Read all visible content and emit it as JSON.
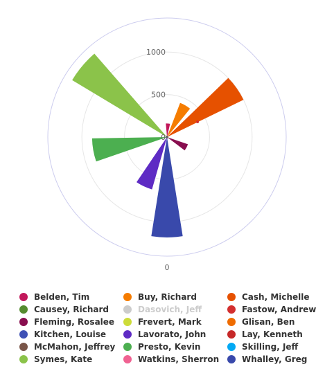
{
  "chart_data": {
    "type": "polar-bar",
    "radial_ticks": [
      "0",
      "500",
      "1000"
    ],
    "angular_tick": "0",
    "rmax": 1400,
    "series": [
      {
        "name": "Belden, Tim",
        "color": "#c2185b",
        "angle": 4,
        "value": 160,
        "visible": true
      },
      {
        "name": "Buy, Richard",
        "color": "#f57c00",
        "angle": 30,
        "value": 430,
        "visible": true
      },
      {
        "name": "Cash, Michelle",
        "color": "#e65100",
        "angle": 55,
        "value": 1000,
        "visible": true
      },
      {
        "name": "Causey, Richard",
        "color": "#558b2f",
        "angle": 80,
        "value": 0,
        "visible": true
      },
      {
        "name": "Dasovich, Jeff",
        "color": "#cccccc",
        "angle": 100,
        "value": 0,
        "visible": false
      },
      {
        "name": "Fastow, Andrew",
        "color": "#d32f2f",
        "angle": 110,
        "value": 0,
        "visible": true
      },
      {
        "name": "Fleming, Rosalee",
        "color": "#880e4f",
        "angle": 118,
        "value": 260,
        "visible": true
      },
      {
        "name": "Frevert, Mark",
        "color": "#cddc39",
        "angle": 140,
        "value": 0,
        "visible": true
      },
      {
        "name": "Glisan, Ben",
        "color": "#ef6c00",
        "angle": 150,
        "value": 0,
        "visible": true
      },
      {
        "name": "Kitchen, Louise",
        "color": "#3f51b5",
        "angle": 165,
        "value": 0,
        "visible": true
      },
      {
        "name": "Lavorato, John",
        "color": "#5e2bc4",
        "angle": 205,
        "value": 640,
        "visible": true
      },
      {
        "name": "Lay, Kenneth",
        "color": "#c62828",
        "angle": 215,
        "value": 0,
        "visible": true
      },
      {
        "name": "McMahon, Jeffrey",
        "color": "#795548",
        "angle": 225,
        "value": 0,
        "visible": true
      },
      {
        "name": "Presto, Kevin",
        "color": "#4caf50",
        "angle": 260,
        "value": 880,
        "visible": true
      },
      {
        "name": "Skilling, Jeff",
        "color": "#03a9f4",
        "angle": 280,
        "value": 0,
        "visible": true
      },
      {
        "name": "Symes, Kate",
        "color": "#8bc34a",
        "angle": 310,
        "value": 1300,
        "visible": true
      },
      {
        "name": "Watkins, Sherron",
        "color": "#f06292",
        "angle": 330,
        "value": 0,
        "visible": true
      },
      {
        "name": "Whalley, Greg",
        "color": "#3949ab",
        "angle": 180,
        "value": 1180,
        "visible": true
      }
    ]
  },
  "legend": [
    "Belden, Tim",
    "Buy, Richard",
    "Cash, Michelle",
    "Causey, Richard",
    "Dasovich, Jeff",
    "Fastow, Andrew",
    "Fleming, Rosalee",
    "Frevert, Mark",
    "Glisan, Ben",
    "Kitchen, Louise",
    "Lavorato, John",
    "Lay, Kenneth",
    "McMahon, Jeffrey",
    "Presto, Kevin",
    "Skilling, Jeff",
    "Symes, Kate",
    "Watkins, Sherron",
    "Whalley, Greg"
  ],
  "colors": {
    "grid": "#e6e6e6",
    "outer_ring": "#ccccee",
    "text": "#333333",
    "hidden": "#cccccc"
  }
}
